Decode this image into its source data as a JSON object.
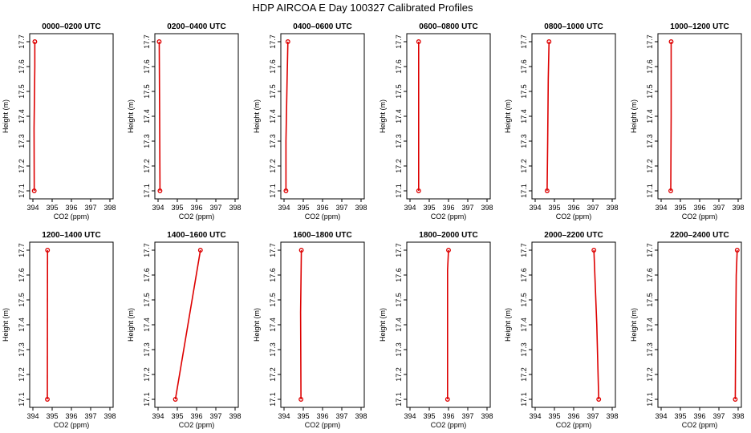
{
  "figure": {
    "title": "HDP AIRCOA E  Day 100327  Calibrated Profiles"
  },
  "chart_data": [
    {
      "type": "line",
      "title": "0000–0200 UTC",
      "xlabel": "CO2 (ppm)",
      "ylabel": "Height (m)",
      "xlim": [
        394,
        398
      ],
      "ylim": [
        17.1,
        17.7
      ],
      "x_ticks": [
        394,
        395,
        396,
        397,
        398
      ],
      "y_ticks": [
        17.1,
        17.2,
        17.3,
        17.4,
        17.5,
        17.6,
        17.7
      ],
      "grid": false,
      "series": [
        {
          "color": "#dd0000",
          "points": [
            {
              "x": 394.07,
              "y": 17.1
            },
            {
              "x": 394.06,
              "y": 17.35
            },
            {
              "x": 394.1,
              "y": 17.6
            },
            {
              "x": 394.1,
              "y": 17.7
            }
          ],
          "markers": [
            {
              "x": 394.07,
              "y": 17.1
            },
            {
              "x": 394.1,
              "y": 17.7
            }
          ]
        }
      ]
    },
    {
      "type": "line",
      "title": "0200–0400 UTC",
      "xlabel": "CO2 (ppm)",
      "ylabel": "Height (m)",
      "xlim": [
        394,
        398
      ],
      "ylim": [
        17.1,
        17.7
      ],
      "x_ticks": [
        394,
        395,
        396,
        397,
        398
      ],
      "y_ticks": [
        17.1,
        17.2,
        17.3,
        17.4,
        17.5,
        17.6,
        17.7
      ],
      "grid": false,
      "series": [
        {
          "color": "#dd0000",
          "points": [
            {
              "x": 394.1,
              "y": 17.1
            },
            {
              "x": 394.08,
              "y": 17.42
            },
            {
              "x": 394.06,
              "y": 17.7
            }
          ],
          "markers": [
            {
              "x": 394.1,
              "y": 17.1
            },
            {
              "x": 394.06,
              "y": 17.7
            }
          ]
        }
      ]
    },
    {
      "type": "line",
      "title": "0400–0600 UTC",
      "xlabel": "CO2 (ppm)",
      "ylabel": "Height (m)",
      "xlim": [
        394,
        398
      ],
      "ylim": [
        17.1,
        17.7
      ],
      "x_ticks": [
        394,
        395,
        396,
        397,
        398
      ],
      "y_ticks": [
        17.1,
        17.2,
        17.3,
        17.4,
        17.5,
        17.6,
        17.7
      ],
      "grid": false,
      "series": [
        {
          "color": "#dd0000",
          "points": [
            {
              "x": 394.1,
              "y": 17.1
            },
            {
              "x": 394.1,
              "y": 17.3
            },
            {
              "x": 394.16,
              "y": 17.55
            },
            {
              "x": 394.2,
              "y": 17.7
            }
          ],
          "markers": [
            {
              "x": 394.1,
              "y": 17.1
            },
            {
              "x": 394.2,
              "y": 17.7
            }
          ]
        }
      ]
    },
    {
      "type": "line",
      "title": "0600–0800 UTC",
      "xlabel": "CO2 (ppm)",
      "ylabel": "Height (m)",
      "xlim": [
        394,
        398
      ],
      "ylim": [
        17.1,
        17.7
      ],
      "x_ticks": [
        394,
        395,
        396,
        397,
        398
      ],
      "y_ticks": [
        17.1,
        17.2,
        17.3,
        17.4,
        17.5,
        17.6,
        17.7
      ],
      "grid": false,
      "series": [
        {
          "color": "#dd0000",
          "points": [
            {
              "x": 394.45,
              "y": 17.1
            },
            {
              "x": 394.45,
              "y": 17.7
            }
          ],
          "markers": [
            {
              "x": 394.45,
              "y": 17.1
            },
            {
              "x": 394.45,
              "y": 17.7
            }
          ]
        }
      ]
    },
    {
      "type": "line",
      "title": "0800–1000 UTC",
      "xlabel": "CO2 (ppm)",
      "ylabel": "Height (m)",
      "xlim": [
        394,
        398
      ],
      "ylim": [
        17.1,
        17.7
      ],
      "x_ticks": [
        394,
        395,
        396,
        397,
        398
      ],
      "y_ticks": [
        17.1,
        17.2,
        17.3,
        17.4,
        17.5,
        17.6,
        17.7
      ],
      "grid": false,
      "series": [
        {
          "color": "#dd0000",
          "points": [
            {
              "x": 394.62,
              "y": 17.1
            },
            {
              "x": 394.65,
              "y": 17.3
            },
            {
              "x": 394.68,
              "y": 17.55
            },
            {
              "x": 394.72,
              "y": 17.7
            }
          ],
          "markers": [
            {
              "x": 394.62,
              "y": 17.1
            },
            {
              "x": 394.72,
              "y": 17.7
            }
          ]
        }
      ]
    },
    {
      "type": "line",
      "title": "1000–1200 UTC",
      "xlabel": "CO2 (ppm)",
      "ylabel": "Height (m)",
      "xlim": [
        394,
        398
      ],
      "ylim": [
        17.1,
        17.7
      ],
      "x_ticks": [
        394,
        395,
        396,
        397,
        398
      ],
      "y_ticks": [
        17.1,
        17.2,
        17.3,
        17.4,
        17.5,
        17.6,
        17.7
      ],
      "grid": false,
      "series": [
        {
          "color": "#dd0000",
          "points": [
            {
              "x": 394.5,
              "y": 17.1
            },
            {
              "x": 394.52,
              "y": 17.4
            },
            {
              "x": 394.52,
              "y": 17.7
            }
          ],
          "markers": [
            {
              "x": 394.5,
              "y": 17.1
            },
            {
              "x": 394.52,
              "y": 17.7
            }
          ]
        }
      ]
    },
    {
      "type": "line",
      "title": "1200–1400 UTC",
      "xlabel": "CO2 (ppm)",
      "ylabel": "Height (m)",
      "xlim": [
        394,
        398
      ],
      "ylim": [
        17.1,
        17.7
      ],
      "x_ticks": [
        394,
        395,
        396,
        397,
        398
      ],
      "y_ticks": [
        17.1,
        17.2,
        17.3,
        17.4,
        17.5,
        17.6,
        17.7
      ],
      "grid": false,
      "series": [
        {
          "color": "#dd0000",
          "points": [
            {
              "x": 394.75,
              "y": 17.1
            },
            {
              "x": 394.76,
              "y": 17.7
            }
          ],
          "markers": [
            {
              "x": 394.75,
              "y": 17.1
            },
            {
              "x": 394.76,
              "y": 17.7
            }
          ]
        }
      ]
    },
    {
      "type": "line",
      "title": "1400–1600 UTC",
      "xlabel": "CO2 (ppm)",
      "ylabel": "Height (m)",
      "xlim": [
        394,
        398
      ],
      "ylim": [
        17.1,
        17.7
      ],
      "x_ticks": [
        394,
        395,
        396,
        397,
        398
      ],
      "y_ticks": [
        17.1,
        17.2,
        17.3,
        17.4,
        17.5,
        17.6,
        17.7
      ],
      "grid": false,
      "series": [
        {
          "color": "#dd0000",
          "points": [
            {
              "x": 394.9,
              "y": 17.1
            },
            {
              "x": 395.55,
              "y": 17.4
            },
            {
              "x": 396.2,
              "y": 17.7
            }
          ],
          "markers": [
            {
              "x": 394.9,
              "y": 17.1
            },
            {
              "x": 396.2,
              "y": 17.7
            }
          ]
        }
      ]
    },
    {
      "type": "line",
      "title": "1600–1800 UTC",
      "xlabel": "CO2 (ppm)",
      "ylabel": "Height (m)",
      "xlim": [
        394,
        398
      ],
      "ylim": [
        17.1,
        17.7
      ],
      "x_ticks": [
        394,
        395,
        396,
        397,
        398
      ],
      "y_ticks": [
        17.1,
        17.2,
        17.3,
        17.4,
        17.5,
        17.6,
        17.7
      ],
      "grid": false,
      "series": [
        {
          "color": "#dd0000",
          "points": [
            {
              "x": 394.88,
              "y": 17.1
            },
            {
              "x": 394.86,
              "y": 17.45
            },
            {
              "x": 394.9,
              "y": 17.7
            }
          ],
          "markers": [
            {
              "x": 394.88,
              "y": 17.1
            },
            {
              "x": 394.9,
              "y": 17.7
            }
          ]
        }
      ]
    },
    {
      "type": "line",
      "title": "1800–2000 UTC",
      "xlabel": "CO2 (ppm)",
      "ylabel": "Height (m)",
      "xlim": [
        394,
        398
      ],
      "ylim": [
        17.1,
        17.7
      ],
      "x_ticks": [
        394,
        395,
        396,
        397,
        398
      ],
      "y_ticks": [
        17.1,
        17.2,
        17.3,
        17.4,
        17.5,
        17.6,
        17.7
      ],
      "grid": false,
      "series": [
        {
          "color": "#dd0000",
          "points": [
            {
              "x": 395.95,
              "y": 17.1
            },
            {
              "x": 395.95,
              "y": 17.62
            },
            {
              "x": 396.0,
              "y": 17.7
            }
          ],
          "markers": [
            {
              "x": 395.95,
              "y": 17.1
            },
            {
              "x": 396.0,
              "y": 17.7
            }
          ]
        }
      ]
    },
    {
      "type": "line",
      "title": "2000–2200 UTC",
      "xlabel": "CO2 (ppm)",
      "ylabel": "Height (m)",
      "xlim": [
        394,
        398
      ],
      "ylim": [
        17.1,
        17.7
      ],
      "x_ticks": [
        394,
        395,
        396,
        397,
        398
      ],
      "y_ticks": [
        17.1,
        17.2,
        17.3,
        17.4,
        17.5,
        17.6,
        17.7
      ],
      "grid": false,
      "series": [
        {
          "color": "#dd0000",
          "points": [
            {
              "x": 397.3,
              "y": 17.1
            },
            {
              "x": 397.2,
              "y": 17.4
            },
            {
              "x": 397.05,
              "y": 17.7
            }
          ],
          "markers": [
            {
              "x": 397.3,
              "y": 17.1
            },
            {
              "x": 397.05,
              "y": 17.7
            }
          ]
        }
      ]
    },
    {
      "type": "line",
      "title": "2200–2400 UTC",
      "xlabel": "CO2 (ppm)",
      "ylabel": "Height (m)",
      "xlim": [
        394,
        398
      ],
      "ylim": [
        17.1,
        17.7
      ],
      "x_ticks": [
        394,
        395,
        396,
        397,
        398
      ],
      "y_ticks": [
        17.1,
        17.2,
        17.3,
        17.4,
        17.5,
        17.6,
        17.7
      ],
      "grid": false,
      "series": [
        {
          "color": "#dd0000",
          "points": [
            {
              "x": 397.85,
              "y": 17.1
            },
            {
              "x": 397.87,
              "y": 17.35
            },
            {
              "x": 397.9,
              "y": 17.6
            },
            {
              "x": 397.95,
              "y": 17.7
            }
          ],
          "markers": [
            {
              "x": 397.85,
              "y": 17.1
            },
            {
              "x": 397.95,
              "y": 17.7
            }
          ]
        }
      ]
    }
  ]
}
